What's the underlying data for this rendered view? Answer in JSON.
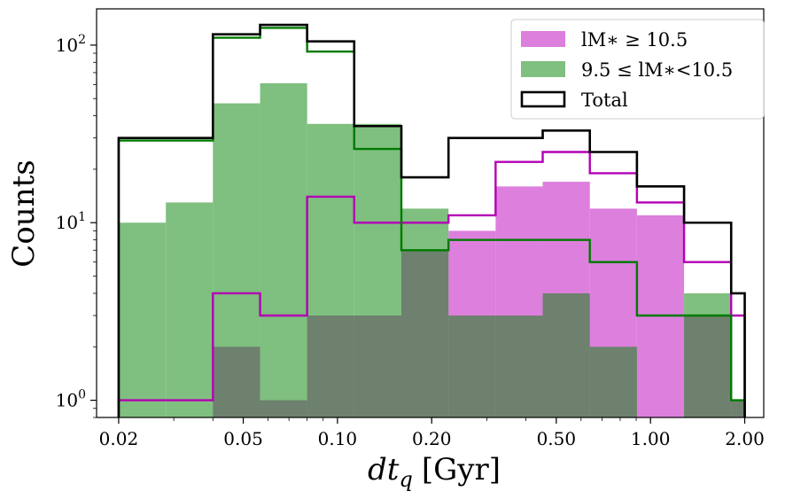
{
  "chart_data": {
    "type": "histogram",
    "x_scale": "log",
    "y_scale": "log",
    "xlim": [
      0.017,
      2.3
    ],
    "ylim": [
      0.8,
      160
    ],
    "xlabel": "dt_q [Gyr]",
    "xlabel_var": "dt",
    "xlabel_sub": "q",
    "xlabel_unit": "[Gyr]",
    "ylabel": "Counts",
    "x_ticks": [
      {
        "value": 0.02,
        "label": "0.02"
      },
      {
        "value": 0.05,
        "label": "0.05"
      },
      {
        "value": 0.1,
        "label": "0.10"
      },
      {
        "value": 0.2,
        "label": "0.20"
      },
      {
        "value": 0.5,
        "label": "0.50"
      },
      {
        "value": 1.0,
        "label": "1.00"
      },
      {
        "value": 2.0,
        "label": "2.00"
      }
    ],
    "y_ticks": [
      {
        "value": 1,
        "base": "10",
        "exp": "0"
      },
      {
        "value": 10,
        "base": "10",
        "exp": "1"
      },
      {
        "value": 100,
        "base": "10",
        "exp": "2"
      }
    ],
    "bin_edges": [
      0.02,
      0.0283,
      0.04,
      0.0566,
      0.08,
      0.1131,
      0.16,
      0.2263,
      0.32,
      0.4525,
      0.64,
      0.905,
      1.28,
      1.81,
      2.0
    ],
    "series": [
      {
        "name": "lM_* ≥ 10.5",
        "legend_label": "lM∗ ≥ 10.5",
        "kind": "filled",
        "color": "#dd7fdd",
        "values": [
          0,
          0,
          2,
          1,
          3,
          3,
          7,
          9,
          16,
          17,
          12,
          11,
          3,
          1
        ]
      },
      {
        "name": "9.5 ≤ lM_* < 10.5",
        "legend_label": "9.5 ≤ lM∗<10.5",
        "kind": "filled",
        "color": "#7fbf7f",
        "values": [
          10,
          13,
          47,
          61,
          36,
          36,
          12,
          3,
          3,
          4,
          2,
          0,
          4,
          1
        ]
      },
      {
        "name": "Overlap",
        "kind": "filled",
        "color": "#6e806e",
        "values": [
          0,
          0,
          2,
          1,
          3,
          3,
          7,
          3,
          3,
          4,
          2,
          0,
          3,
          1
        ]
      },
      {
        "name": "lM_* ≥ 10.5 (cumulative step)",
        "kind": "step",
        "color": "#b400b4",
        "values": [
          1,
          1,
          4,
          3,
          14,
          10,
          10,
          11,
          22,
          25,
          19,
          13,
          6,
          3
        ]
      },
      {
        "name": "9.5 ≤ lM_* < 10.5 (cumulative step)",
        "kind": "step",
        "color": "#007a00",
        "values": [
          29,
          29,
          110,
          125,
          92,
          26,
          7,
          8,
          8,
          8,
          6,
          3,
          3,
          1
        ]
      },
      {
        "name": "Total",
        "legend_label": "Total",
        "kind": "step",
        "color": "#000000",
        "values": [
          30,
          30,
          115,
          130,
          105,
          35,
          18,
          30,
          30,
          33,
          25,
          16,
          10,
          4
        ]
      }
    ],
    "legend": {
      "position": "top-right",
      "entries": [
        {
          "label": "lM∗ ≥ 10.5",
          "color": "#dd7fdd",
          "style": "filled"
        },
        {
          "label": "9.5 ≤ lM∗<10.5",
          "color": "#7fbf7f",
          "style": "filled"
        },
        {
          "label": "Total",
          "color": "#000000",
          "style": "outline"
        }
      ]
    }
  }
}
